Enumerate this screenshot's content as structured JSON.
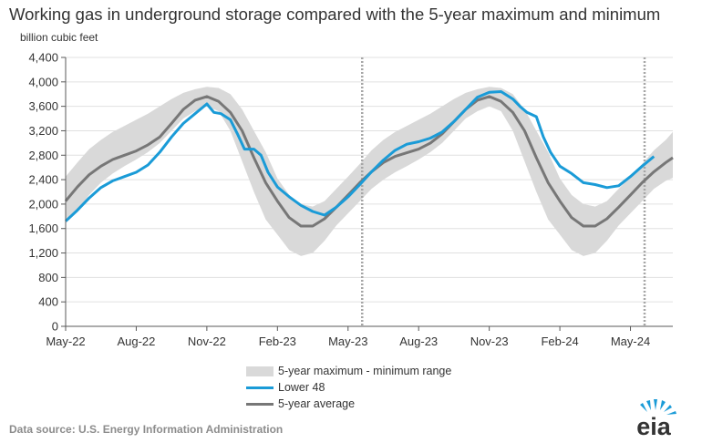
{
  "header": {
    "title": "Working gas in underground  storage compared with the 5-year maximum and minimum",
    "unit_label": "billion cubic feet"
  },
  "footer": {
    "source": "Data source:  U.S. Energy Information Administration",
    "logo_text": "eia"
  },
  "colors": {
    "lower48": "#1a9bd7",
    "average": "#777777",
    "range": "#d9d9d9",
    "axis": "#595959",
    "divider": "#a6a6a6"
  },
  "chart_data": {
    "type": "line",
    "title": "Working gas in underground  storage compared with the 5-year maximum and minimum",
    "ylabel": "billion cubic feet",
    "xlabel": "",
    "ylim": [
      0,
      4400
    ],
    "yticks": [
      "0",
      "400",
      "800",
      "1,200",
      "1,600",
      "2,000",
      "2,400",
      "2,800",
      "3,200",
      "3,600",
      "4,000",
      "4,400"
    ],
    "ytick_values": [
      0,
      400,
      800,
      1200,
      1600,
      2000,
      2400,
      2800,
      3200,
      3600,
      4000,
      4400
    ],
    "x_range_months": [
      0,
      25.8
    ],
    "xticks": [
      {
        "label": "May-22",
        "month": 0
      },
      {
        "label": "Aug-22",
        "month": 3
      },
      {
        "label": "Nov-22",
        "month": 6
      },
      {
        "label": "Feb-23",
        "month": 9
      },
      {
        "label": "May-23",
        "month": 12
      },
      {
        "label": "Aug-23",
        "month": 15
      },
      {
        "label": "Nov-23",
        "month": 18
      },
      {
        "label": "Feb-24",
        "month": 21
      },
      {
        "label": "May-24",
        "month": 24
      }
    ],
    "dividers_month": [
      12.6,
      24.6
    ],
    "grid": true,
    "legend_position": "bottom",
    "series": [
      {
        "name": "5-year maximum - minimum range",
        "kind": "band",
        "x": [
          0,
          0.5,
          1,
          1.5,
          2,
          2.5,
          3,
          3.5,
          4,
          4.5,
          5,
          5.5,
          6,
          6.5,
          7,
          7.5,
          8,
          8.5,
          9,
          9.5,
          10,
          10.5,
          11,
          11.5,
          12,
          12.5,
          13,
          13.5,
          14,
          14.5,
          15,
          15.5,
          16,
          16.5,
          17,
          17.5,
          18,
          18.5,
          19,
          19.5,
          20,
          20.5,
          21,
          21.5,
          22,
          22.5,
          23,
          23.5,
          24,
          24.5,
          25,
          25.5,
          25.8
        ],
        "upper": [
          2450,
          2680,
          2900,
          3050,
          3180,
          3280,
          3380,
          3480,
          3600,
          3720,
          3820,
          3880,
          3920,
          3900,
          3800,
          3550,
          3200,
          2850,
          2420,
          2150,
          2000,
          1960,
          2050,
          2250,
          2450,
          2660,
          2880,
          3050,
          3180,
          3280,
          3380,
          3480,
          3600,
          3720,
          3820,
          3880,
          3920,
          3900,
          3800,
          3550,
          3200,
          2850,
          2420,
          2150,
          2000,
          1960,
          2050,
          2250,
          2450,
          2660,
          2880,
          3050,
          3180
        ],
        "lower": [
          1700,
          1900,
          2150,
          2350,
          2500,
          2620,
          2730,
          2850,
          3000,
          3200,
          3400,
          3520,
          3600,
          3520,
          3200,
          2700,
          2200,
          1750,
          1500,
          1250,
          1150,
          1200,
          1400,
          1650,
          1850,
          2050,
          2250,
          2400,
          2520,
          2620,
          2730,
          2850,
          3000,
          3200,
          3400,
          3520,
          3600,
          3520,
          3200,
          2700,
          2200,
          1750,
          1500,
          1250,
          1150,
          1200,
          1400,
          1650,
          1850,
          2050,
          2250,
          2380,
          2430
        ]
      },
      {
        "name": "Lower 48",
        "kind": "line",
        "x": [
          0,
          0.5,
          1,
          1.5,
          2,
          2.5,
          3,
          3.5,
          4,
          4.5,
          5,
          5.5,
          6,
          6.3,
          6.6,
          7,
          7.3,
          7.6,
          8,
          8.3,
          8.6,
          9,
          9.5,
          10,
          10.5,
          11,
          11.5,
          12,
          12.5,
          13,
          13.5,
          14,
          14.5,
          15,
          15.5,
          16,
          16.5,
          17,
          17.5,
          18,
          18.5,
          19,
          19.3,
          19.6,
          20,
          20.3,
          20.6,
          21,
          21.5,
          22,
          22.5,
          23,
          23.5,
          24,
          24.5,
          25
        ],
        "y": [
          1720,
          1900,
          2100,
          2270,
          2380,
          2450,
          2520,
          2640,
          2850,
          3100,
          3320,
          3480,
          3640,
          3500,
          3480,
          3380,
          3150,
          2900,
          2900,
          2800,
          2520,
          2280,
          2120,
          1980,
          1880,
          1820,
          1950,
          2120,
          2320,
          2530,
          2720,
          2880,
          2980,
          3020,
          3080,
          3180,
          3350,
          3550,
          3750,
          3830,
          3840,
          3720,
          3600,
          3500,
          3430,
          3100,
          2850,
          2620,
          2500,
          2350,
          2320,
          2270,
          2300,
          2450,
          2620,
          2780
        ]
      },
      {
        "name": "5-year average",
        "kind": "line",
        "x": [
          0,
          0.5,
          1,
          1.5,
          2,
          2.5,
          3,
          3.5,
          4,
          4.5,
          5,
          5.5,
          6,
          6.5,
          7,
          7.5,
          8,
          8.5,
          9,
          9.5,
          10,
          10.5,
          11,
          11.5,
          12,
          12.5,
          13,
          13.5,
          14,
          14.5,
          15,
          15.5,
          16,
          16.5,
          17,
          17.5,
          18,
          18.5,
          19,
          19.5,
          20,
          20.5,
          21,
          21.5,
          22,
          22.5,
          23,
          23.5,
          24,
          24.5,
          25,
          25.5,
          25.8
        ],
        "y": [
          2050,
          2280,
          2480,
          2620,
          2730,
          2800,
          2870,
          2970,
          3100,
          3320,
          3550,
          3700,
          3760,
          3680,
          3500,
          3200,
          2760,
          2350,
          2050,
          1780,
          1640,
          1640,
          1760,
          1950,
          2150,
          2350,
          2530,
          2680,
          2780,
          2840,
          2900,
          3000,
          3150,
          3350,
          3550,
          3700,
          3760,
          3680,
          3500,
          3200,
          2760,
          2350,
          2050,
          1780,
          1640,
          1640,
          1760,
          1950,
          2150,
          2350,
          2530,
          2680,
          2760
        ]
      }
    ],
    "legend": [
      "5-year maximum - minimum range",
      "Lower 48",
      "5-year average"
    ]
  }
}
